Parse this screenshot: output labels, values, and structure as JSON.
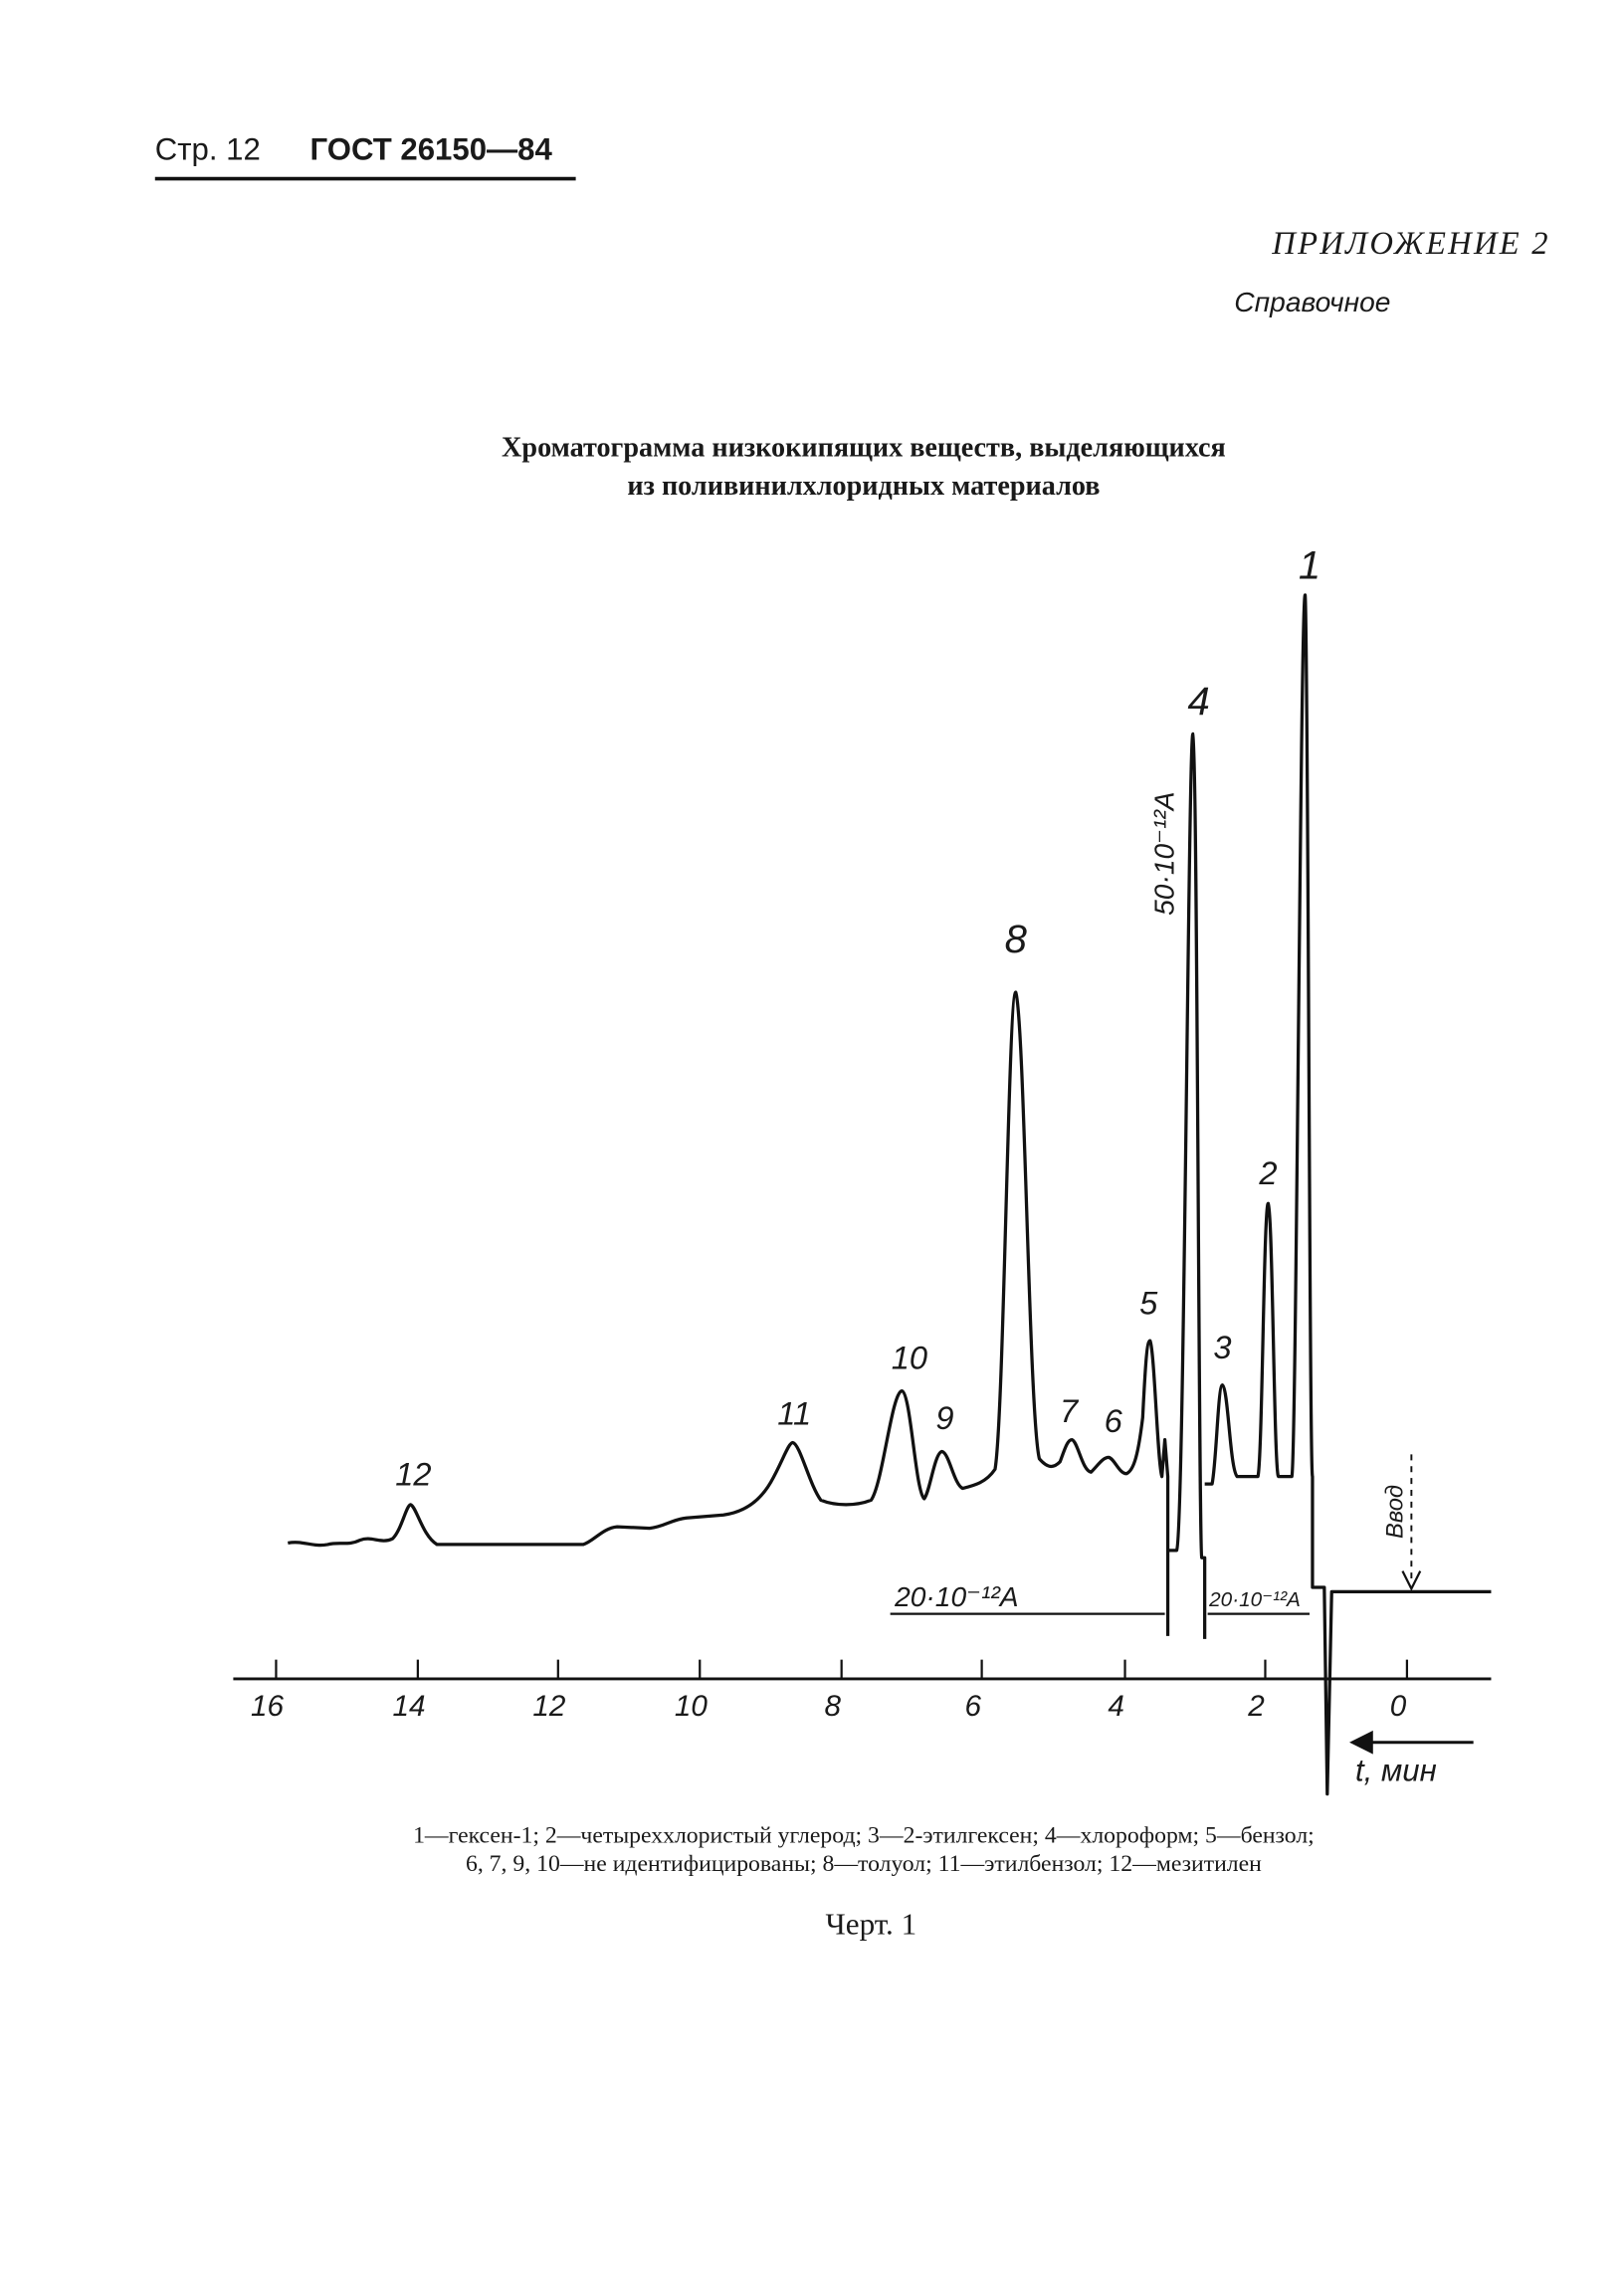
{
  "header": {
    "page": "Стр. 12",
    "standard": "ГОСТ 26150—84"
  },
  "appendix": {
    "title": "ПРИЛОЖЕНИЕ 2",
    "subtitle": "Справочное"
  },
  "figure": {
    "title": [
      "Хроматограмма низкокипящих веществ, выделяющихся",
      "из поливинилхлоридных материалов"
    ],
    "peak_labels": [
      "1",
      "2",
      "3",
      "4",
      "5",
      "6",
      "7",
      "8",
      "9",
      "10",
      "11",
      "12"
    ],
    "axis_labels": [
      "16",
      "14",
      "12",
      "10",
      "8",
      "6",
      "4",
      "2",
      "0"
    ],
    "axis_unit": "t, мин",
    "injection": "Ввод",
    "scale_labels": [
      "50·10⁻¹²A",
      "20·10⁻¹²A",
      "20·10⁻¹²A"
    ],
    "legend": [
      "1—гексен-1; 2—четыреххлористый углерод; 3—2-этилгексен; 4—хлороформ; 5—бензол;",
      "6, 7, 9, 10—не идентифицированы; 8—толуол; 11—этилбензол; 12—мезитилен"
    ],
    "caption": "Черт. 1"
  }
}
